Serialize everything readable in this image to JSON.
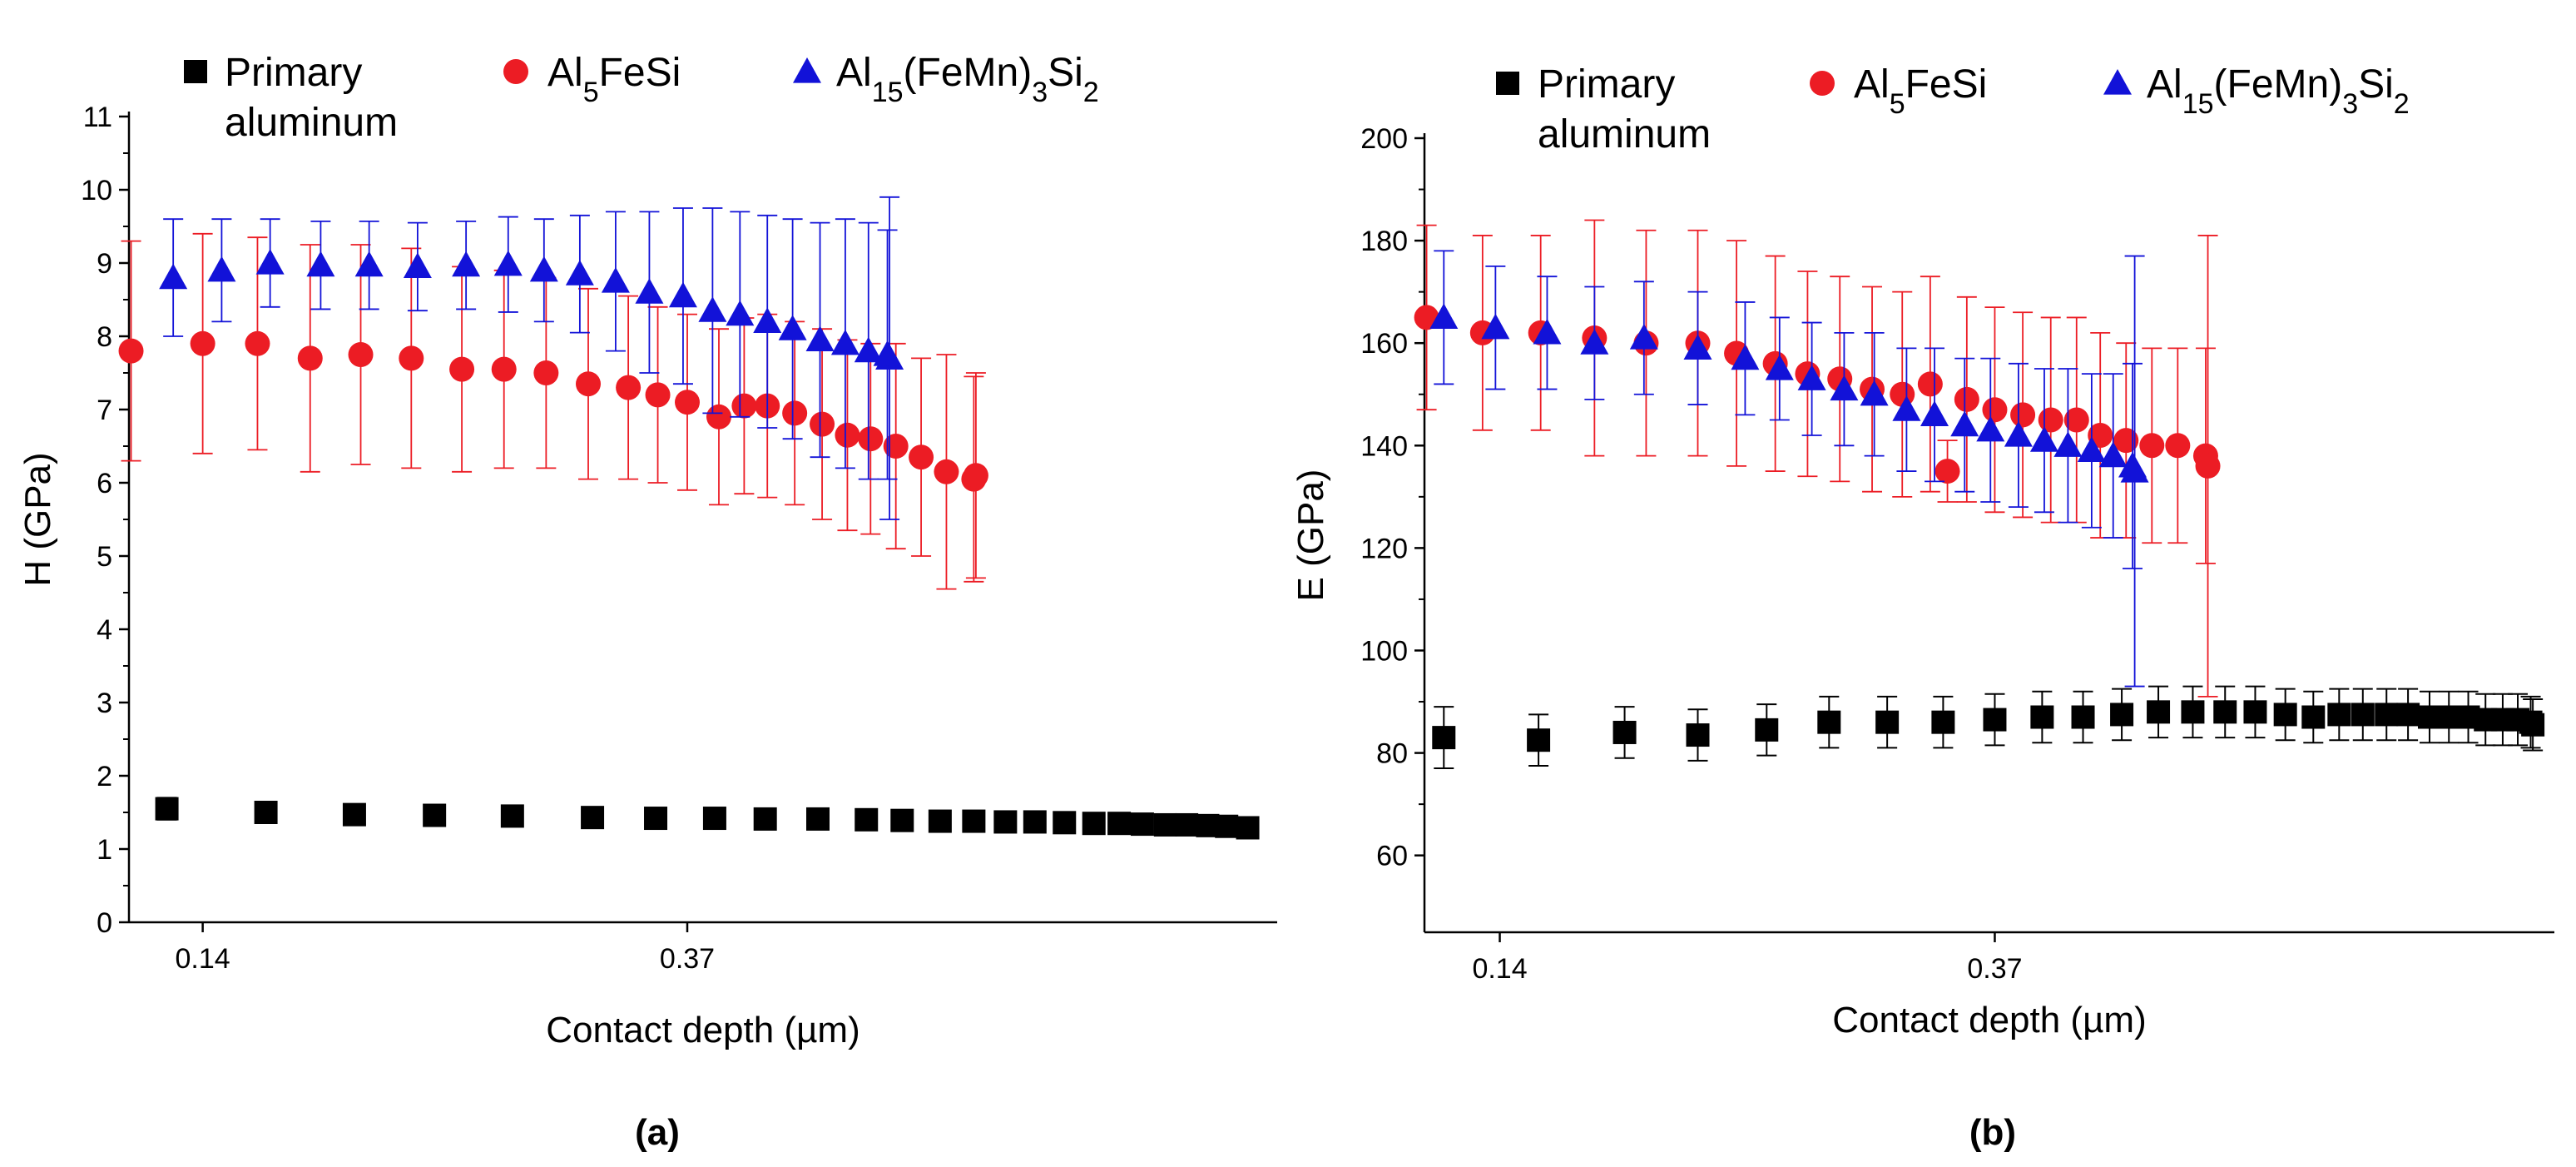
{
  "chart_data": [
    {
      "type": "scatter",
      "panel_label": "(a)",
      "xlabel": "Contact depth (µm)",
      "ylabel": "H (GPa)",
      "x_ticks": [
        "0.14",
        "0.37"
      ],
      "x_tick_values": [
        0.14,
        0.37
      ],
      "xlim": [
        0.105,
        0.65
      ],
      "ylim": [
        0,
        11
      ],
      "y_ticks": [
        0,
        1,
        2,
        3,
        4,
        5,
        6,
        7,
        8,
        9,
        10,
        11
      ],
      "y_tick_labels": [
        "0",
        "1",
        "2",
        "3",
        "4",
        "5",
        "6",
        "7",
        "8",
        "9",
        "10",
        "11"
      ],
      "grid": false,
      "legend_position": "top",
      "series": [
        {
          "name": "Primary aluminum",
          "name_lines": [
            "Primary",
            "aluminum"
          ],
          "color": "#000000",
          "marker": "square",
          "x": [
            0.123,
            0.17,
            0.212,
            0.25,
            0.287,
            0.325,
            0.355,
            0.383,
            0.407,
            0.432,
            0.455,
            0.472,
            0.49,
            0.506,
            0.521,
            0.535,
            0.549,
            0.563,
            0.575,
            0.586,
            0.597,
            0.607,
            0.617,
            0.626,
            0.636
          ],
          "y": [
            1.55,
            1.5,
            1.47,
            1.46,
            1.45,
            1.43,
            1.42,
            1.42,
            1.41,
            1.41,
            1.4,
            1.39,
            1.38,
            1.38,
            1.37,
            1.37,
            1.36,
            1.35,
            1.35,
            1.34,
            1.33,
            1.33,
            1.32,
            1.31,
            1.29
          ],
          "err": [
            0.15,
            0.1,
            0.06,
            0.05,
            0.04,
            0.04,
            0.04,
            0.03,
            0.03,
            0.03,
            0.03,
            0.03,
            0.03,
            0.03,
            0.03,
            0.03,
            0.03,
            0.03,
            0.03,
            0.03,
            0.03,
            0.03,
            0.03,
            0.03,
            0.03
          ]
        },
        {
          "name": "Al5FeSi",
          "name_parts": [
            {
              "t": "Al",
              "sub": false
            },
            {
              "t": "5",
              "sub": true
            },
            {
              "t": "FeSi",
              "sub": false
            }
          ],
          "color": "#ec1c24",
          "marker": "circle",
          "x": [
            0.106,
            0.14,
            0.166,
            0.191,
            0.215,
            0.239,
            0.263,
            0.283,
            0.303,
            0.323,
            0.342,
            0.356,
            0.37,
            0.385,
            0.397,
            0.408,
            0.421,
            0.434,
            0.446,
            0.457,
            0.469,
            0.481,
            0.493,
            0.506,
            0.507
          ],
          "y": [
            7.8,
            7.9,
            7.9,
            7.7,
            7.75,
            7.7,
            7.55,
            7.55,
            7.5,
            7.35,
            7.3,
            7.2,
            7.1,
            6.9,
            7.05,
            7.05,
            6.95,
            6.8,
            6.65,
            6.6,
            6.5,
            6.35,
            6.15,
            6.05,
            6.1
          ],
          "err": [
            1.5,
            1.5,
            1.45,
            1.55,
            1.5,
            1.5,
            1.4,
            1.35,
            1.3,
            1.3,
            1.25,
            1.2,
            1.2,
            1.2,
            1.2,
            1.25,
            1.25,
            1.3,
            1.3,
            1.3,
            1.4,
            1.35,
            1.6,
            1.4,
            1.4
          ]
        },
        {
          "name": "Al15(FeMn)3Si2",
          "name_parts": [
            {
              "t": "Al",
              "sub": false
            },
            {
              "t": "15",
              "sub": true
            },
            {
              "t": "(FeMn)",
              "sub": false
            },
            {
              "t": "3",
              "sub": true
            },
            {
              "t": "Si",
              "sub": false
            },
            {
              "t": "2",
              "sub": true
            }
          ],
          "color": "#1212d8",
          "marker": "triangle",
          "x": [
            0.126,
            0.149,
            0.172,
            0.196,
            0.219,
            0.242,
            0.265,
            0.285,
            0.302,
            0.319,
            0.336,
            0.352,
            0.368,
            0.382,
            0.395,
            0.408,
            0.42,
            0.433,
            0.445,
            0.456,
            0.466,
            0.465
          ],
          "y": [
            8.8,
            8.9,
            9.0,
            8.97,
            8.97,
            8.95,
            8.97,
            8.98,
            8.9,
            8.85,
            8.75,
            8.6,
            8.55,
            8.35,
            8.3,
            8.2,
            8.1,
            7.95,
            7.9,
            7.8,
            7.7,
            7.75
          ],
          "err": [
            0.8,
            0.7,
            0.6,
            0.6,
            0.6,
            0.6,
            0.6,
            0.65,
            0.7,
            0.8,
            0.95,
            1.1,
            1.2,
            1.4,
            1.4,
            1.45,
            1.5,
            1.6,
            1.7,
            1.75,
            2.2,
            1.7
          ]
        }
      ]
    },
    {
      "type": "scatter",
      "panel_label": "(b)",
      "xlabel": "Contact depth (µm)",
      "ylabel": "E (GPa)",
      "x_ticks": [
        "0.14",
        "0.37"
      ],
      "x_tick_values": [
        0.14,
        0.37
      ],
      "xlim": [
        0.105,
        0.63
      ],
      "ylim": [
        45,
        200
      ],
      "y_ticks": [
        60,
        80,
        100,
        120,
        140,
        160,
        180,
        200
      ],
      "y_tick_labels": [
        "60",
        "80",
        "100",
        "120",
        "140",
        "160",
        "180",
        "200"
      ],
      "grid": false,
      "legend_position": "top",
      "series": [
        {
          "name": "Primary aluminum",
          "name_lines": [
            "Primary",
            "aluminum"
          ],
          "color": "#000000",
          "marker": "square",
          "x": [
            0.114,
            0.158,
            0.198,
            0.232,
            0.264,
            0.293,
            0.32,
            0.346,
            0.37,
            0.392,
            0.411,
            0.429,
            0.446,
            0.462,
            0.477,
            0.491,
            0.505,
            0.518,
            0.53,
            0.541,
            0.552,
            0.562,
            0.572,
            0.581,
            0.59,
            0.598,
            0.606,
            0.613,
            0.619,
            0.62
          ],
          "y": [
            83,
            82.5,
            84,
            83.5,
            84.5,
            86,
            86,
            86,
            86.5,
            87,
            87,
            87.5,
            88,
            88,
            88,
            88,
            87.5,
            87,
            87.5,
            87.5,
            87.5,
            87.5,
            87,
            87,
            87,
            86.5,
            86.5,
            86.5,
            86,
            85.5
          ],
          "err": [
            6,
            5,
            5,
            5,
            5,
            5,
            5,
            5,
            5,
            5,
            5,
            5,
            5,
            5,
            5,
            5,
            5,
            5,
            5,
            5,
            5,
            5,
            5,
            5,
            5,
            5,
            5,
            5,
            5,
            5
          ]
        },
        {
          "name": "Al5FeSi",
          "name_parts": [
            {
              "t": "Al",
              "sub": false
            },
            {
              "t": "5",
              "sub": true
            },
            {
              "t": "FeSi",
              "sub": false
            }
          ],
          "color": "#ec1c24",
          "marker": "circle",
          "x": [
            0.106,
            0.132,
            0.159,
            0.184,
            0.208,
            0.232,
            0.25,
            0.268,
            0.283,
            0.298,
            0.313,
            0.327,
            0.34,
            0.348,
            0.357,
            0.37,
            0.383,
            0.396,
            0.408,
            0.419,
            0.431,
            0.443,
            0.455,
            0.468,
            0.469
          ],
          "y": [
            165,
            162,
            162,
            161,
            160,
            160,
            158,
            156,
            154,
            153,
            151,
            150,
            152,
            135,
            149,
            147,
            146,
            145,
            145,
            142,
            141,
            140,
            140,
            138,
            136
          ],
          "err": [
            18,
            19,
            19,
            23,
            22,
            22,
            22,
            21,
            20,
            20,
            20,
            20,
            21,
            6,
            20,
            20,
            20,
            20,
            20,
            20,
            19,
            19,
            19,
            21,
            45
          ]
        },
        {
          "name": "Al15(FeMn)3Si2",
          "name_parts": [
            {
              "t": "Al",
              "sub": false
            },
            {
              "t": "15",
              "sub": true
            },
            {
              "t": "(FeMn)",
              "sub": false
            },
            {
              "t": "3",
              "sub": true
            },
            {
              "t": "Si",
              "sub": false
            },
            {
              "t": "2",
              "sub": true
            }
          ],
          "color": "#1212d8",
          "marker": "triangle",
          "x": [
            0.114,
            0.138,
            0.162,
            0.184,
            0.207,
            0.232,
            0.254,
            0.27,
            0.285,
            0.3,
            0.314,
            0.329,
            0.342,
            0.356,
            0.368,
            0.381,
            0.393,
            0.404,
            0.415,
            0.425,
            0.434,
            0.435
          ],
          "y": [
            165,
            163,
            162,
            160,
            161,
            159,
            157,
            155,
            153,
            151,
            150,
            147,
            146,
            144,
            143,
            142,
            141,
            140,
            139,
            138,
            136,
            135
          ],
          "err": [
            13,
            12,
            11,
            11,
            11,
            11,
            11,
            10,
            11,
            11,
            12,
            12,
            13,
            13,
            14,
            14,
            14,
            15,
            15,
            16,
            20,
            42
          ]
        }
      ]
    }
  ]
}
